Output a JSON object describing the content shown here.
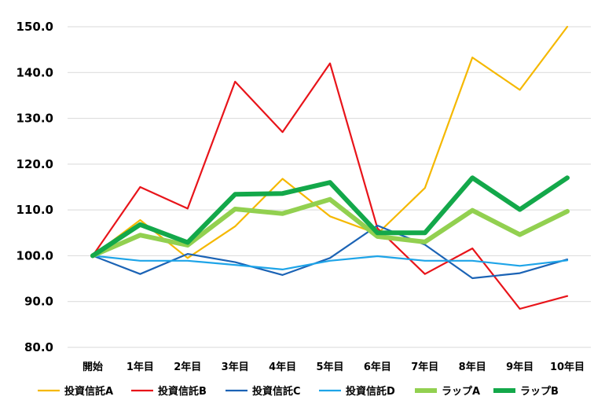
{
  "chart_data": {
    "type": "line",
    "categories": [
      "開始",
      "1年目",
      "2年目",
      "3年目",
      "4年目",
      "5年目",
      "6年目",
      "7年目",
      "8年目",
      "9年目",
      "10年目"
    ],
    "ylim": [
      80.0,
      150.0
    ],
    "ytick_step": 10,
    "ytick_labels": [
      "80.0",
      "90.0",
      "100.0",
      "110.0",
      "120.0",
      "130.0",
      "140.0",
      "150.0"
    ],
    "grid": true,
    "legend_position": "bottom",
    "series": [
      {
        "name": "投資信託A",
        "color": "#f5b800",
        "width": "thin",
        "values": [
          100.0,
          107.8,
          99.5,
          106.4,
          116.8,
          108.6,
          104.8,
          114.8,
          143.3,
          136.2,
          150.0
        ]
      },
      {
        "name": "投資信託B",
        "color": "#e8141a",
        "width": "thin",
        "values": [
          100.0,
          115.0,
          110.3,
          138.0,
          127.0,
          142.0,
          106.0,
          96.0,
          101.6,
          88.4,
          91.2
        ]
      },
      {
        "name": "投資信託C",
        "color": "#1b63b5",
        "width": "thin",
        "values": [
          100.0,
          96.0,
          100.4,
          98.6,
          95.8,
          99.5,
          106.6,
          102.4,
          95.1,
          96.2,
          99.2
        ]
      },
      {
        "name": "投資信託D",
        "color": "#1ea4e8",
        "width": "thin",
        "values": [
          100.0,
          98.9,
          98.9,
          98.0,
          97.0,
          98.9,
          99.9,
          98.9,
          98.9,
          97.8,
          99.0
        ]
      },
      {
        "name": "ラップA",
        "color": "#92d050",
        "width": "thick",
        "values": [
          100.0,
          104.5,
          102.3,
          110.2,
          109.2,
          112.3,
          104.2,
          103.0,
          109.9,
          104.6,
          109.7
        ]
      },
      {
        "name": "ラップB",
        "color": "#13a84a",
        "width": "thick",
        "values": [
          100.0,
          106.8,
          102.9,
          113.4,
          113.6,
          116.0,
          105.0,
          105.0,
          117.0,
          110.1,
          117.0
        ]
      }
    ]
  }
}
